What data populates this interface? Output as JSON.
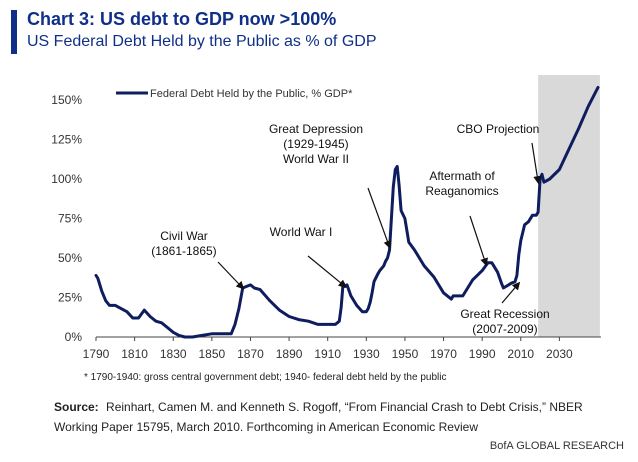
{
  "header": {
    "title": "Chart 3: US debt to GDP now >100%",
    "subtitle": "US Federal Debt Held by the Public as % of GDP"
  },
  "colors": {
    "accent": "#0f2f88",
    "series": "#0f1d5e",
    "projection_shade": "#d9d9d9"
  },
  "chart_data": {
    "type": "line",
    "title": "",
    "xlabel": "",
    "ylabel": "",
    "xlim": [
      1790,
      2051
    ],
    "ylim": [
      0,
      150
    ],
    "x_ticks": [
      1790,
      1810,
      1830,
      1850,
      1870,
      1890,
      1910,
      1930,
      1950,
      1970,
      1990,
      2010,
      2030
    ],
    "x_tick_labels": [
      "1790",
      "1810",
      "1830",
      "1850",
      "1870",
      "1890",
      "1910",
      "1930",
      "1950",
      "1970",
      "1990",
      "2010",
      "2030"
    ],
    "y_ticks": [
      0,
      25,
      50,
      75,
      100,
      125,
      150
    ],
    "y_tick_labels": [
      "0%",
      "25%",
      "50%",
      "75%",
      "100%",
      "125%",
      "150%"
    ],
    "grid": false,
    "legend": {
      "placement": "top-left",
      "entries": [
        "Federal Debt Held by the Public, % GDP*"
      ]
    },
    "shaded_region": {
      "x_start": 2019,
      "x_end": 2051,
      "meaning": "CBO projection period"
    },
    "series": [
      {
        "name": "Federal Debt Held by the Public, % GDP*",
        "x": [
          1790,
          1791,
          1793,
          1795,
          1797,
          1800,
          1803,
          1806,
          1809,
          1812,
          1815,
          1818,
          1821,
          1824,
          1827,
          1830,
          1833,
          1836,
          1840,
          1845,
          1850,
          1855,
          1860,
          1862,
          1864,
          1866,
          1868,
          1870,
          1872,
          1875,
          1880,
          1885,
          1890,
          1895,
          1900,
          1905,
          1910,
          1914,
          1916,
          1917,
          1918,
          1919,
          1920,
          1922,
          1925,
          1928,
          1930,
          1931,
          1932,
          1933,
          1934,
          1936,
          1937,
          1939,
          1940,
          1941,
          1942,
          1943,
          1944,
          1945,
          1946,
          1947,
          1948,
          1950,
          1952,
          1955,
          1960,
          1965,
          1970,
          1974,
          1975,
          1980,
          1985,
          1990,
          1993,
          1995,
          1998,
          2000,
          2001,
          2005,
          2007,
          2008,
          2009,
          2010,
          2012,
          2014,
          2016,
          2018,
          2019,
          2020,
          2021,
          2022,
          2025,
          2030,
          2035,
          2040,
          2045,
          2050
        ],
        "values": [
          39,
          37,
          29,
          23,
          20,
          20,
          18,
          16,
          12,
          12,
          17,
          13,
          10,
          9,
          6,
          3,
          1,
          0,
          0,
          1,
          2,
          2,
          2,
          8,
          18,
          31,
          32,
          33,
          31,
          30,
          23,
          17,
          13,
          11,
          10,
          8,
          8,
          8,
          10,
          19,
          34,
          32,
          33,
          26,
          20,
          16,
          16,
          18,
          22,
          28,
          35,
          40,
          42,
          45,
          48,
          50,
          55,
          75,
          95,
          106,
          108,
          96,
          80,
          75,
          60,
          55,
          45,
          38,
          28,
          24,
          26,
          26,
          36,
          42,
          47,
          47,
          41,
          34,
          31,
          34,
          35,
          39,
          52,
          61,
          71,
          73,
          77,
          77,
          79,
          100,
          103,
          98,
          100,
          106,
          119,
          132,
          146,
          158
        ]
      }
    ],
    "annotations": [
      {
        "text_lines": [
          "Civil War",
          "(1861-1865)"
        ],
        "arrow_to": [
          1866,
          31
        ]
      },
      {
        "text_lines": [
          "World War I"
        ],
        "arrow_to": [
          1919,
          32
        ]
      },
      {
        "text_lines": [
          "Great Depression",
          "(1929-1945)",
          "World War II"
        ],
        "arrow_to": [
          1942,
          57
        ]
      },
      {
        "text_lines": [
          "Aftermath of",
          "Reaganomics"
        ],
        "arrow_to": [
          1992,
          46
        ]
      },
      {
        "text_lines": [
          "CBO Projection"
        ],
        "arrow_to": [
          2019,
          98
        ]
      },
      {
        "text_lines": [
          "Great Recession",
          "(2007-2009)"
        ],
        "arrow_to": [
          2009,
          34
        ]
      }
    ]
  },
  "footnote": "* 1790-1940: gross central government debt; 1940- federal debt held by the public",
  "source": {
    "label": "Source:",
    "text": "Reinhart, Camen M. and Kenneth S. Rogoff, “From Financial Crash to Debt Crisis,”  NBER Working Paper 15795,  March 2010.  Forthcoming in American Economic Review"
  },
  "brand": {
    "logo_text": "BofA",
    "text": "GLOBAL RESEARCH"
  }
}
